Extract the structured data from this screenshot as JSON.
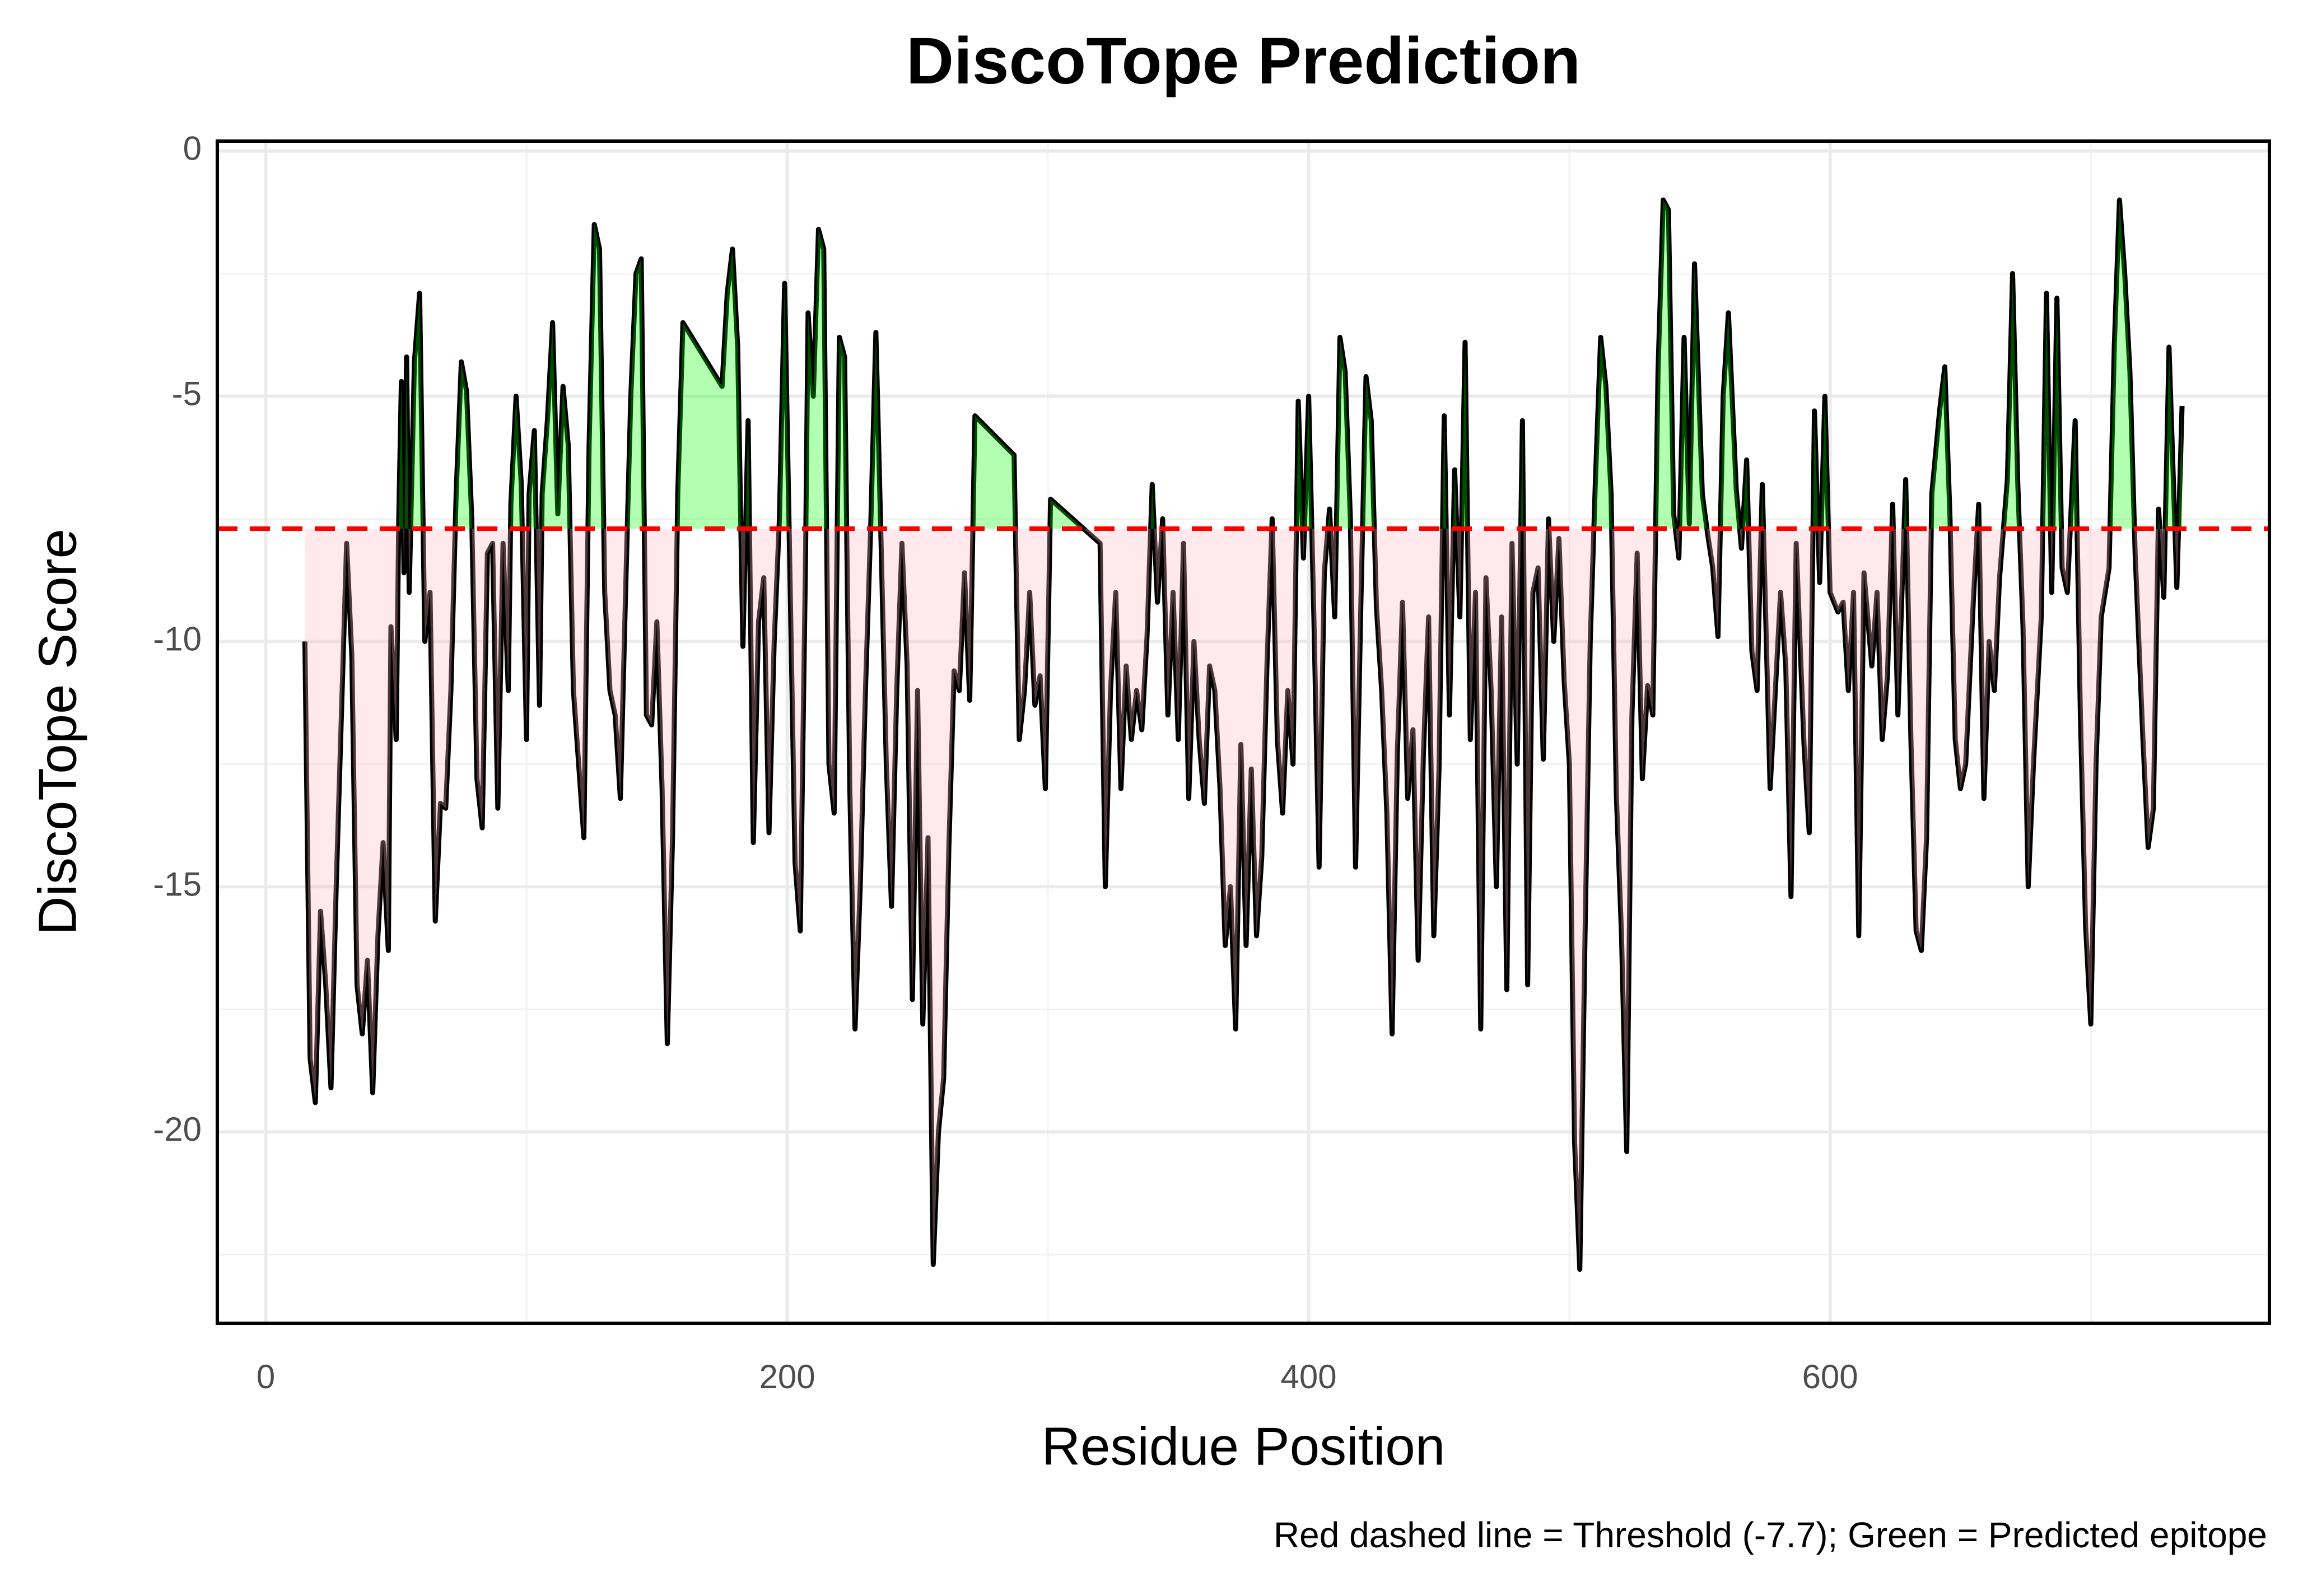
{
  "chart_data": {
    "type": "line",
    "title": "DiscoTope Prediction",
    "x_label": "Residue Position",
    "y_label": "DiscoTope Score",
    "annotation": "Red dashed line = Threshold (-7.7); Green = Predicted epitope",
    "threshold": -7.7,
    "threshold_color": "#ff0000",
    "color": "#000000",
    "above_color": "#00ff00",
    "below_color": "#ffb6c1",
    "xlim": [
      -18.6,
      768.5
    ],
    "ylim": [
      -23.9,
      0.2
    ],
    "xticks": [
      0,
      200,
      400,
      600
    ],
    "yticks": [
      0,
      -5,
      -10,
      -15,
      -20
    ],
    "grid": true,
    "x": [
      15,
      17,
      19,
      21,
      23,
      25,
      27,
      29,
      31,
      33,
      35,
      37,
      39,
      41,
      43,
      45,
      47,
      48,
      50,
      51,
      52,
      53,
      54,
      55,
      57,
      59,
      61,
      63,
      65,
      67,
      69,
      71,
      73,
      75,
      77,
      79,
      81,
      83,
      85,
      87,
      89,
      91,
      93,
      94,
      96,
      98,
      100,
      101,
      103,
      105,
      106,
      108,
      110,
      112,
      114,
      116,
      118,
      120,
      122,
      124,
      126,
      128,
      130,
      132,
      134,
      136,
      138,
      140,
      142,
      144,
      146,
      148,
      150,
      152,
      154,
      156,
      158,
      160,
      175,
      177,
      179,
      181,
      183,
      185,
      187,
      189,
      191,
      193,
      195,
      197,
      199,
      201,
      203,
      205,
      207,
      208,
      210,
      212,
      214,
      216,
      218,
      220,
      222,
      224,
      226,
      228,
      230,
      232,
      234,
      236,
      238,
      240,
      242,
      244,
      246,
      248,
      250,
      252,
      254,
      256,
      258,
      260,
      262,
      264,
      266,
      268,
      270,
      272,
      287,
      289,
      291,
      293,
      295,
      297,
      299,
      301,
      320,
      322,
      324,
      326,
      328,
      330,
      332,
      334,
      336,
      338,
      340,
      342,
      344,
      346,
      348,
      350,
      352,
      354,
      356,
      358,
      360,
      362,
      364,
      366,
      368,
      370,
      372,
      374,
      376,
      378,
      380,
      382,
      384,
      386,
      388,
      390,
      392,
      394,
      396,
      398,
      400,
      402,
      404,
      406,
      408,
      410,
      412,
      414,
      416,
      418,
      420,
      422,
      424,
      426,
      428,
      430,
      432,
      434,
      436,
      438,
      440,
      442,
      444,
      446,
      448,
      450,
      452,
      454,
      456,
      458,
      460,
      462,
      464,
      466,
      468,
      470,
      472,
      474,
      476,
      478,
      480,
      482,
      484,
      486,
      488,
      490,
      492,
      494,
      496,
      498,
      500,
      502,
      504,
      506,
      508,
      510,
      512,
      514,
      516,
      518,
      520,
      522,
      524,
      526,
      528,
      530,
      532,
      534,
      536,
      538,
      540,
      542,
      544,
      546,
      548,
      551,
      553,
      555,
      557,
      559,
      561,
      564,
      566,
      568,
      570,
      572,
      574,
      577,
      579,
      581,
      583,
      585,
      587,
      590,
      592,
      594,
      596,
      598,
      600,
      603,
      605,
      607,
      609,
      611,
      613,
      616,
      618,
      620,
      622,
      624,
      626,
      629,
      631,
      633,
      635,
      637,
      639,
      642,
      644,
      646,
      648,
      650,
      652,
      655,
      657,
      659,
      661,
      663,
      665,
      668,
      670,
      672,
      674,
      676,
      678,
      681,
      683,
      685,
      687,
      689,
      691,
      694,
      696,
      698,
      700,
      702,
      704,
      707,
      709,
      711,
      713,
      715,
      717,
      720,
      722,
      724,
      726,
      728,
      730,
      733,
      735
    ],
    "values": [
      -10,
      -18.5,
      -19.4,
      -15.5,
      -17,
      -19.1,
      -15,
      -11.5,
      -8,
      -10.3,
      -17,
      -18,
      -16.5,
      -19.2,
      -16,
      -14.1,
      -16.3,
      -9.7,
      -12,
      -7.5,
      -4.7,
      -8.6,
      -4.2,
      -9,
      -4.3,
      -2.9,
      -10,
      -9,
      -15.7,
      -13.3,
      -13.4,
      -11,
      -7,
      -4.3,
      -4.9,
      -7.5,
      -12.8,
      -13.8,
      -8.2,
      -8,
      -13.4,
      -8,
      -11,
      -7.2,
      -5,
      -6.8,
      -12,
      -7,
      -5.7,
      -11.3,
      -7,
      -5.5,
      -3.5,
      -7.4,
      -4.8,
      -6,
      -11,
      -12.5,
      -14,
      -6,
      -1.5,
      -2,
      -9,
      -11,
      -11.5,
      -13.2,
      -9,
      -5,
      -2.5,
      -2.2,
      -11.5,
      -11.7,
      -9.6,
      -13,
      -18.2,
      -14,
      -7,
      -3.5,
      -4.8,
      -2.9,
      -2,
      -4,
      -10.1,
      -5.5,
      -14.1,
      -9.6,
      -8.7,
      -13.9,
      -10,
      -7.5,
      -2.7,
      -8.5,
      -14.5,
      -15.9,
      -8.4,
      -3.3,
      -5,
      -1.6,
      -2,
      -12.5,
      -13.5,
      -3.8,
      -4.2,
      -13,
      -17.9,
      -15,
      -11,
      -7.7,
      -3.7,
      -8,
      -12.5,
      -15.4,
      -11,
      -8,
      -10.5,
      -17.3,
      -11,
      -17.8,
      -14,
      -22.7,
      -20,
      -18.9,
      -14.2,
      -10.6,
      -11,
      -8.6,
      -11.2,
      -5.4,
      -6.2,
      -12,
      -11,
      -9,
      -11.3,
      -10.7,
      -13,
      -7.1,
      -8,
      -15,
      -11,
      -9,
      -13,
      -10.5,
      -12,
      -11,
      -11.8,
      -9.9,
      -6.8,
      -9.2,
      -7.5,
      -11.5,
      -9,
      -12,
      -8,
      -13.2,
      -10,
      -12,
      -13.3,
      -10.5,
      -11,
      -13,
      -16.2,
      -15,
      -17.9,
      -12.1,
      -16.2,
      -12.6,
      -16,
      -14.4,
      -10.5,
      -7.5,
      -12,
      -13.5,
      -11,
      -12.5,
      -5.1,
      -8.3,
      -5,
      -9.5,
      -14.6,
      -8.6,
      -7.3,
      -9.5,
      -3.8,
      -4.5,
      -7.5,
      -14.6,
      -9.3,
      -4.6,
      -5.5,
      -9.3,
      -11,
      -13.5,
      -18,
      -12.3,
      -9.2,
      -13.2,
      -11.8,
      -16.5,
      -12.3,
      -9.5,
      -16,
      -12.6,
      -5.4,
      -11.5,
      -6.5,
      -9.5,
      -3.9,
      -12,
      -9,
      -17.9,
      -8.7,
      -11,
      -15,
      -9.5,
      -17.1,
      -8,
      -12.5,
      -5.5,
      -17,
      -9,
      -8.5,
      -12.4,
      -7.5,
      -10,
      -7.9,
      -10.8,
      -12.5,
      -20.2,
      -22.8,
      -16,
      -10,
      -6.7,
      -3.8,
      -4.8,
      -7,
      -13.1,
      -16,
      -20.4,
      -11.5,
      -8.2,
      -12.8,
      -10.9,
      -11.5,
      -4.5,
      -1,
      -1.2,
      -7.4,
      -8.3,
      -3.8,
      -7.6,
      -2.3,
      -7,
      -7.8,
      -8.5,
      -9.9,
      -5,
      -3.3,
      -6.9,
      -8.1,
      -6.3,
      -10.2,
      -11,
      -6.8,
      -13,
      -11,
      -9,
      -10.5,
      -15.2,
      -8,
      -12.1,
      -13.9,
      -5.3,
      -8.8,
      -5,
      -9,
      -9.4,
      -9.2,
      -11,
      -9,
      -16,
      -8.6,
      -10.5,
      -9,
      -12,
      -10.7,
      -7.2,
      -11.5,
      -6.7,
      -12,
      -15.9,
      -16.3,
      -14,
      -7,
      -5.3,
      -4.4,
      -7.5,
      -12,
      -13,
      -12.5,
      -9.1,
      -7.2,
      -13.2,
      -10,
      -11,
      -8.7,
      -6.7,
      -2.5,
      -6.8,
      -9.7,
      -15,
      -12.5,
      -9.5,
      -2.9,
      -9,
      -3,
      -8.5,
      -9,
      -5.5,
      -11.5,
      -15.8,
      -17.8,
      -12.5,
      -9.5,
      -8.5,
      -4,
      -1,
      -2.5,
      -4.5,
      -8.2,
      -12,
      -14.2,
      -13.4,
      -7.3,
      -9.1,
      -4,
      -8.9,
      -5.2
    ]
  }
}
